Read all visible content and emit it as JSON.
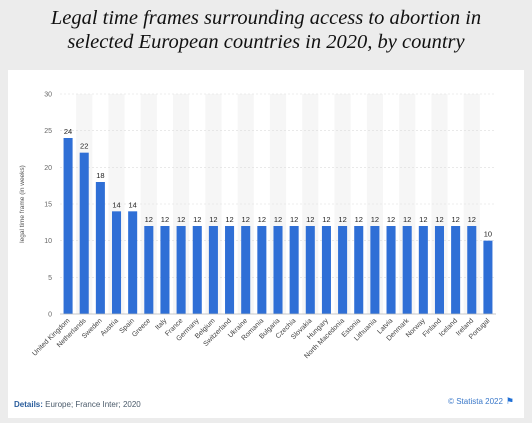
{
  "header": {
    "title_line1": "Legal time frames surrounding access to abortion in",
    "title_line2": "selected European countries in 2020, by country"
  },
  "footer": {
    "details_label": "Details:",
    "details_text": "Europe; France Inter; 2020",
    "credit": "© Statista 2022",
    "flag_icon": "flag-icon"
  },
  "chart_data": {
    "type": "bar",
    "categories": [
      "United Kingdom",
      "Netherlands",
      "Sweden",
      "Austria",
      "Spain",
      "Greece",
      "Italy",
      "France",
      "Germany",
      "Belgium",
      "Switzerland",
      "Ukraine",
      "Romania",
      "Bulgaria",
      "Czechia",
      "Slovakia",
      "Hungary",
      "North Macedonia",
      "Estonia",
      "Lithuania",
      "Latvia",
      "Denmark",
      "Norway",
      "Finland",
      "Iceland",
      "Ireland",
      "Portugal"
    ],
    "values": [
      24,
      22,
      18,
      14,
      14,
      12,
      12,
      12,
      12,
      12,
      12,
      12,
      12,
      12,
      12,
      12,
      12,
      12,
      12,
      12,
      12,
      12,
      12,
      12,
      12,
      12,
      10
    ],
    "ylabel": "legal time frame (in weeks)",
    "ylim": [
      0,
      30
    ],
    "yticks": [
      0,
      5,
      10,
      15,
      20,
      25,
      30
    ],
    "grid": true,
    "bar_color": "#2f6fd6"
  }
}
